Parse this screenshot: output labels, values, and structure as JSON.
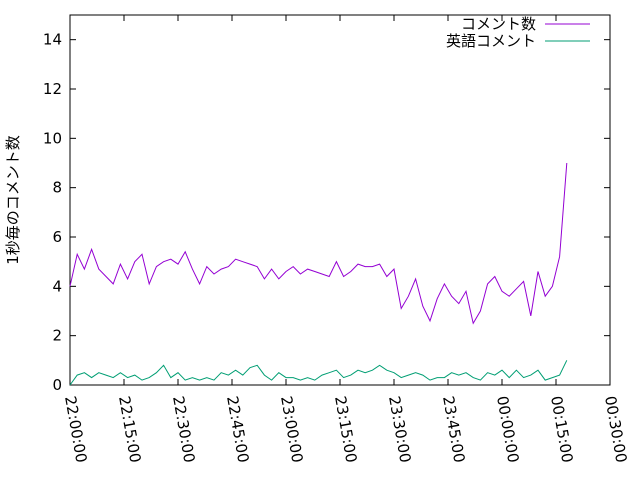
{
  "chart_data": {
    "type": "line",
    "ylabel": "1秒毎のコメント数",
    "xlim": [
      "22:00:00",
      "00:30:00"
    ],
    "xticks": [
      "22:00:00",
      "22:15:00",
      "22:30:00",
      "22:45:00",
      "23:00:00",
      "23:15:00",
      "23:30:00",
      "23:45:00",
      "00:00:00",
      "00:15:00",
      "00:30:00"
    ],
    "ylim": [
      0,
      15
    ],
    "yticks": [
      0,
      2,
      4,
      6,
      8,
      10,
      12,
      14
    ],
    "legend": "top-right",
    "x": [
      "22:00:00",
      "22:02:00",
      "22:04:00",
      "22:06:00",
      "22:08:00",
      "22:10:00",
      "22:12:00",
      "22:14:00",
      "22:16:00",
      "22:18:00",
      "22:20:00",
      "22:22:00",
      "22:24:00",
      "22:26:00",
      "22:28:00",
      "22:30:00",
      "22:32:00",
      "22:34:00",
      "22:36:00",
      "22:38:00",
      "22:40:00",
      "22:42:00",
      "22:44:00",
      "22:46:00",
      "22:48:00",
      "22:50:00",
      "22:52:00",
      "22:54:00",
      "22:56:00",
      "22:58:00",
      "23:00:00",
      "23:02:00",
      "23:04:00",
      "23:06:00",
      "23:08:00",
      "23:10:00",
      "23:12:00",
      "23:14:00",
      "23:16:00",
      "23:18:00",
      "23:20:00",
      "23:22:00",
      "23:24:00",
      "23:26:00",
      "23:28:00",
      "23:30:00",
      "23:32:00",
      "23:34:00",
      "23:36:00",
      "23:38:00",
      "23:40:00",
      "23:42:00",
      "23:44:00",
      "23:46:00",
      "23:48:00",
      "23:50:00",
      "23:52:00",
      "23:54:00",
      "23:56:00",
      "23:58:00",
      "00:00:00",
      "00:02:00",
      "00:04:00",
      "00:06:00",
      "00:08:00",
      "00:10:00",
      "00:12:00",
      "00:14:00",
      "00:16:00",
      "00:18:00"
    ],
    "series": [
      {
        "name": "コメント数",
        "color": "#9400d3",
        "values": [
          4.0,
          5.3,
          4.7,
          5.5,
          4.7,
          4.4,
          4.1,
          4.9,
          4.3,
          5.0,
          5.3,
          4.1,
          4.8,
          5.0,
          5.1,
          4.9,
          5.4,
          4.7,
          4.1,
          4.8,
          4.5,
          4.7,
          4.8,
          5.1,
          5.0,
          4.9,
          4.8,
          4.3,
          4.7,
          4.3,
          4.6,
          4.8,
          4.5,
          4.7,
          4.6,
          4.5,
          4.4,
          5.0,
          4.4,
          4.6,
          4.9,
          4.8,
          4.8,
          4.9,
          4.4,
          4.7,
          3.1,
          3.6,
          4.3,
          3.2,
          2.6,
          3.5,
          4.1,
          3.6,
          3.3,
          3.8,
          2.5,
          3.0,
          4.1,
          4.4,
          3.8,
          3.6,
          3.9,
          4.2,
          2.8,
          4.6,
          3.6,
          4.0,
          5.2,
          9.0
        ]
      },
      {
        "name": "英語コメント",
        "color": "#009e73",
        "values": [
          0.0,
          0.4,
          0.5,
          0.3,
          0.5,
          0.4,
          0.3,
          0.5,
          0.3,
          0.4,
          0.2,
          0.3,
          0.5,
          0.8,
          0.3,
          0.5,
          0.2,
          0.3,
          0.2,
          0.3,
          0.2,
          0.5,
          0.4,
          0.6,
          0.4,
          0.7,
          0.8,
          0.4,
          0.2,
          0.5,
          0.3,
          0.3,
          0.2,
          0.3,
          0.2,
          0.4,
          0.5,
          0.6,
          0.3,
          0.4,
          0.6,
          0.5,
          0.6,
          0.8,
          0.6,
          0.5,
          0.3,
          0.4,
          0.5,
          0.4,
          0.2,
          0.3,
          0.3,
          0.5,
          0.4,
          0.5,
          0.3,
          0.2,
          0.5,
          0.4,
          0.6,
          0.3,
          0.6,
          0.3,
          0.4,
          0.6,
          0.2,
          0.3,
          0.4,
          1.0
        ]
      }
    ]
  }
}
